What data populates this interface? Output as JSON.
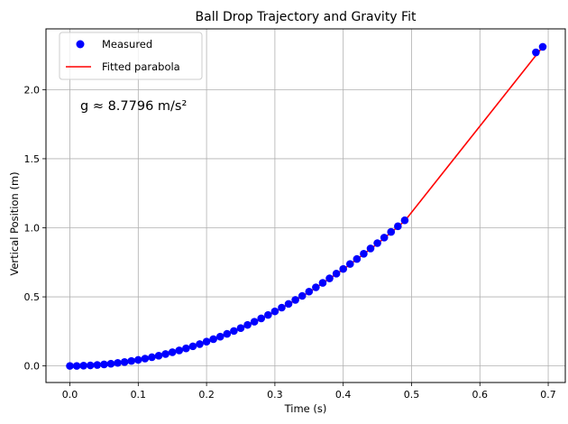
{
  "chart_data": {
    "type": "scatter",
    "title": "Ball Drop Trajectory and Gravity Fit",
    "xlabel": "Time (s)",
    "ylabel": "Vertical Position (m)",
    "xlim": [
      -0.035,
      0.725
    ],
    "ylim": [
      -0.12,
      2.44
    ],
    "xticks": [
      0.0,
      0.1,
      0.2,
      0.3,
      0.4,
      0.5,
      0.6,
      0.7
    ],
    "xtick_labels": [
      "0.0",
      "0.1",
      "0.2",
      "0.3",
      "0.4",
      "0.5",
      "0.6",
      "0.7"
    ],
    "yticks": [
      0.0,
      0.5,
      1.0,
      1.5,
      2.0
    ],
    "ytick_labels": [
      "0.0",
      "0.5",
      "1.0",
      "1.5",
      "2.0"
    ],
    "grid": true,
    "legend_position": "top-left",
    "annotation": "g ≈ 8.7796 m/s²",
    "series": [
      {
        "name": "Measured",
        "kind": "markers",
        "color": "#0000ff",
        "x": [
          0.0,
          0.01,
          0.02,
          0.03,
          0.04,
          0.05,
          0.06,
          0.07,
          0.08,
          0.09,
          0.1,
          0.11,
          0.12,
          0.13,
          0.14,
          0.15,
          0.16,
          0.17,
          0.18,
          0.19,
          0.2,
          0.21,
          0.22,
          0.23,
          0.24,
          0.25,
          0.26,
          0.27,
          0.28,
          0.29,
          0.3,
          0.31,
          0.32,
          0.33,
          0.34,
          0.35,
          0.36,
          0.37,
          0.38,
          0.39,
          0.4,
          0.41,
          0.42,
          0.43,
          0.44,
          0.45,
          0.46,
          0.47,
          0.48,
          0.49,
          0.682,
          0.692
        ],
        "y": [
          0.0,
          0.0,
          0.002,
          0.004,
          0.007,
          0.011,
          0.016,
          0.022,
          0.028,
          0.036,
          0.044,
          0.053,
          0.063,
          0.074,
          0.086,
          0.099,
          0.112,
          0.127,
          0.142,
          0.158,
          0.176,
          0.194,
          0.212,
          0.232,
          0.253,
          0.274,
          0.297,
          0.32,
          0.344,
          0.369,
          0.395,
          0.422,
          0.449,
          0.478,
          0.507,
          0.538,
          0.569,
          0.601,
          0.634,
          0.668,
          0.702,
          0.738,
          0.774,
          0.812,
          0.85,
          0.889,
          0.929,
          0.97,
          1.011,
          1.054,
          2.27,
          2.31
        ]
      },
      {
        "name": "Fitted parabola",
        "kind": "line",
        "color": "#ff0000",
        "x": [
          0.0,
          0.05,
          0.1,
          0.15,
          0.2,
          0.25,
          0.3,
          0.35,
          0.4,
          0.45,
          0.49,
          0.692
        ],
        "y": [
          -0.005,
          0.006,
          0.039,
          0.094,
          0.171,
          0.27,
          0.39,
          0.533,
          0.698,
          0.884,
          1.049,
          2.31
        ]
      }
    ]
  }
}
